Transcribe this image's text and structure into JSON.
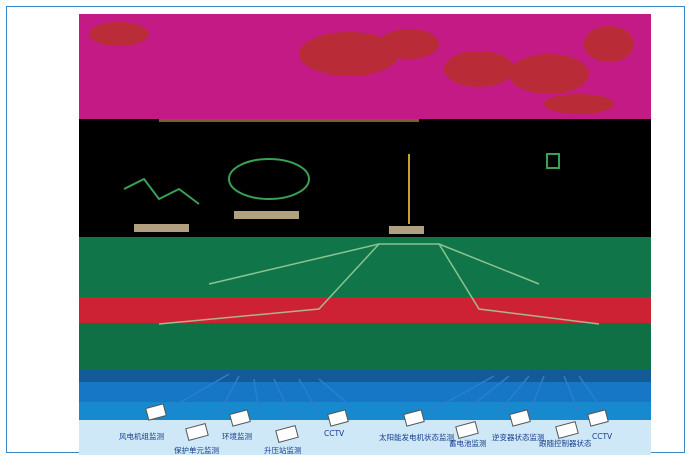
{
  "colors": {
    "frame_border": "#3d86c0",
    "band_magenta": "#c41a86",
    "band_black": "#000000",
    "band_green": "#10764a",
    "band_red": "#cc2233",
    "band_blue": "#1677c7",
    "label_text": "#153c8a"
  },
  "devices": [
    {
      "label": "风电机组监测",
      "icon": "device-icon"
    },
    {
      "label": "保护单元监测",
      "icon": "device-icon"
    },
    {
      "label": "环境监测",
      "icon": "device-icon"
    },
    {
      "label": "升压站监测",
      "icon": "device-icon"
    },
    {
      "label": "CCTV",
      "icon": "device-icon"
    },
    {
      "label": "太阳能发电机状态监测",
      "icon": "device-icon"
    },
    {
      "label": "蓄电池监测",
      "icon": "device-icon"
    },
    {
      "label": "逆变器状态监测",
      "icon": "device-icon"
    },
    {
      "label": "跟随控制器状态",
      "icon": "device-icon"
    },
    {
      "label": "CCTV",
      "icon": "device-icon"
    }
  ]
}
